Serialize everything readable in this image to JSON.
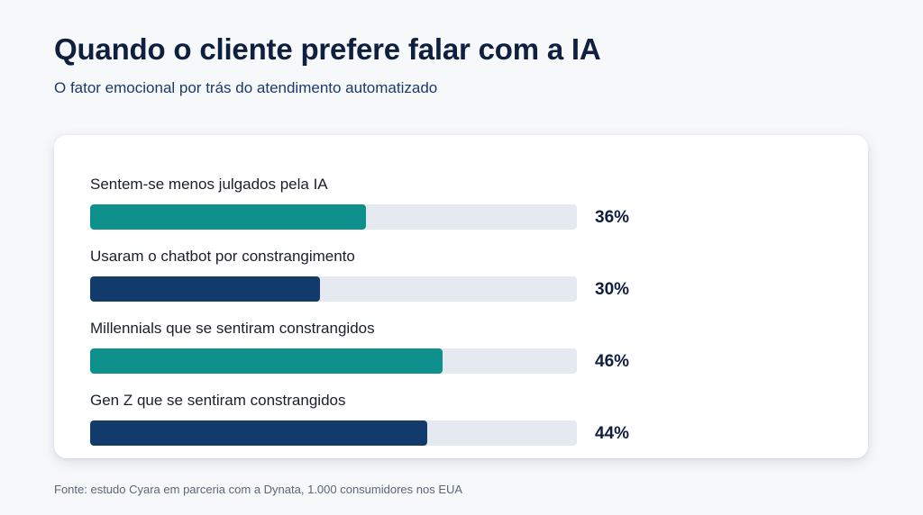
{
  "header": {
    "title": "Quando o cliente prefere falar com a IA",
    "subtitle": "O fator emocional por trás do atendimento automatizado"
  },
  "chart_data": {
    "type": "bar",
    "orientation": "horizontal",
    "categories": [
      "Sentem-se menos julgados pela IA",
      "Usaram o chatbot por constrangimento",
      "Millennials que se sentiram constrangidos",
      "Gen Z que se sentiram constrangidos"
    ],
    "values": [
      36,
      30,
      46,
      44
    ],
    "value_labels": [
      "36%",
      "30%",
      "46%",
      "44%"
    ],
    "bar_colors": [
      "#0e918c",
      "#123a6b",
      "#0e918c",
      "#123a6b"
    ],
    "track_color": "#e4eaf0",
    "xlim": [
      0,
      63.6
    ],
    "grid": false,
    "legend": "none"
  },
  "footer": {
    "source": "Fonte: estudo Cyara em parceria com a Dynata, 1.000 consumidores nos EUA"
  }
}
